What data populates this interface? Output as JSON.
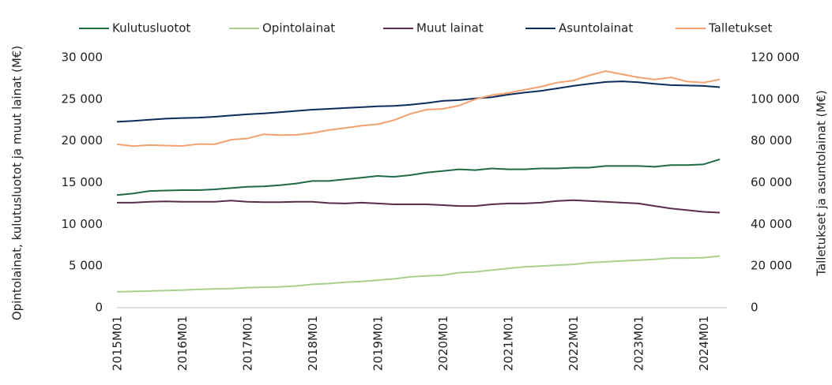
{
  "chart_data": {
    "type": "line",
    "categories": [
      "2015M01",
      null,
      null,
      null,
      "2016M01",
      null,
      null,
      null,
      "2017M01",
      null,
      null,
      null,
      "2018M01",
      null,
      null,
      null,
      "2019M01",
      null,
      null,
      null,
      "2020M01",
      null,
      null,
      null,
      "2021M01",
      null,
      null,
      null,
      "2022M01",
      null,
      null,
      null,
      "2023M01",
      null,
      null,
      null,
      "2024M01",
      null
    ],
    "y_label": "Opintolainat, kulutusluotot ja muut lainat (M€)",
    "y2_label": "Talletukset ja asuntolainat (M€)",
    "ylim": [
      0,
      30000
    ],
    "yticks": [
      0,
      {
        "value": 5000,
        "label": "5 000"
      },
      {
        "value": 10000,
        "label": "10 000"
      },
      {
        "value": 15000,
        "label": "15 000"
      },
      {
        "value": 20000,
        "label": "20 000"
      },
      {
        "value": 25000,
        "label": "25 000"
      },
      {
        "value": 30000,
        "label": "30 000"
      }
    ],
    "y2lim": [
      0,
      120000
    ],
    "y2ticks": [
      0,
      {
        "value": 20000,
        "label": "20 000"
      },
      {
        "value": 40000,
        "label": "40 000"
      },
      {
        "value": 60000,
        "label": "60 000"
      },
      {
        "value": 80000,
        "label": "80 000"
      },
      {
        "value": 100000,
        "label": "100 000"
      },
      {
        "value": 120000,
        "label": "120 000"
      }
    ],
    "legend": "top",
    "series": [
      {
        "name": "Kulutusluotot",
        "color": "#1e6b45",
        "values": [
          13500,
          13700,
          14000,
          14050,
          14100,
          14100,
          14200,
          14350,
          14500,
          14550,
          14700,
          14900,
          15200,
          15200,
          15400,
          15600,
          15800,
          15700,
          15900,
          16200,
          16400,
          16600,
          16500,
          16700,
          16600,
          16600,
          16700,
          16700,
          16800,
          16800,
          17000,
          17000,
          17000,
          16900,
          17100,
          17100,
          17200,
          17800
        ]
      },
      {
        "name": "Opintolainat",
        "color": "#a9d18e",
        "values": [
          1900,
          1950,
          2000,
          2050,
          2100,
          2200,
          2250,
          2300,
          2400,
          2450,
          2500,
          2600,
          2800,
          2900,
          3050,
          3150,
          3300,
          3450,
          3700,
          3800,
          3900,
          4200,
          4300,
          4500,
          4700,
          4900,
          5000,
          5100,
          5200,
          5400,
          5500,
          5600,
          5700,
          5800,
          5950,
          5950,
          6000,
          6200
        ]
      },
      {
        "name": "Muut lainat",
        "color": "#5a2d4a",
        "values": [
          12600,
          12600,
          12700,
          12750,
          12700,
          12700,
          12700,
          12850,
          12700,
          12650,
          12650,
          12700,
          12700,
          12550,
          12500,
          12600,
          12500,
          12400,
          12400,
          12400,
          12300,
          12200,
          12200,
          12400,
          12500,
          12500,
          12600,
          12800,
          12900,
          12800,
          12700,
          12600,
          12500,
          12200,
          11900,
          11700,
          11500,
          11400
        ]
      },
      {
        "name": "Asuntolainat",
        "color": "#0c2d5e",
        "axis": "y2",
        "values": [
          89200,
          89600,
          90200,
          90700,
          91000,
          91200,
          91600,
          92200,
          92800,
          93200,
          93800,
          94400,
          95000,
          95400,
          95800,
          96200,
          96600,
          96800,
          97400,
          98200,
          99200,
          99600,
          100400,
          101000,
          102200,
          103200,
          104000,
          105200,
          106400,
          107400,
          108300,
          108600,
          108200,
          107400,
          106800,
          106600,
          106400,
          105800
        ]
      },
      {
        "name": "Talletukset",
        "color": "#f4a070",
        "axis": "y2",
        "values": [
          78400,
          77500,
          78000,
          77800,
          77600,
          78500,
          78400,
          80600,
          81200,
          83200,
          82800,
          82900,
          83800,
          85200,
          86200,
          87300,
          88000,
          90000,
          93000,
          95000,
          95400,
          97000,
          100000,
          102000,
          103000,
          104500,
          106000,
          108000,
          109000,
          111500,
          113500,
          112000,
          110500,
          109500,
          110500,
          108500,
          108000,
          109500
        ]
      }
    ]
  }
}
